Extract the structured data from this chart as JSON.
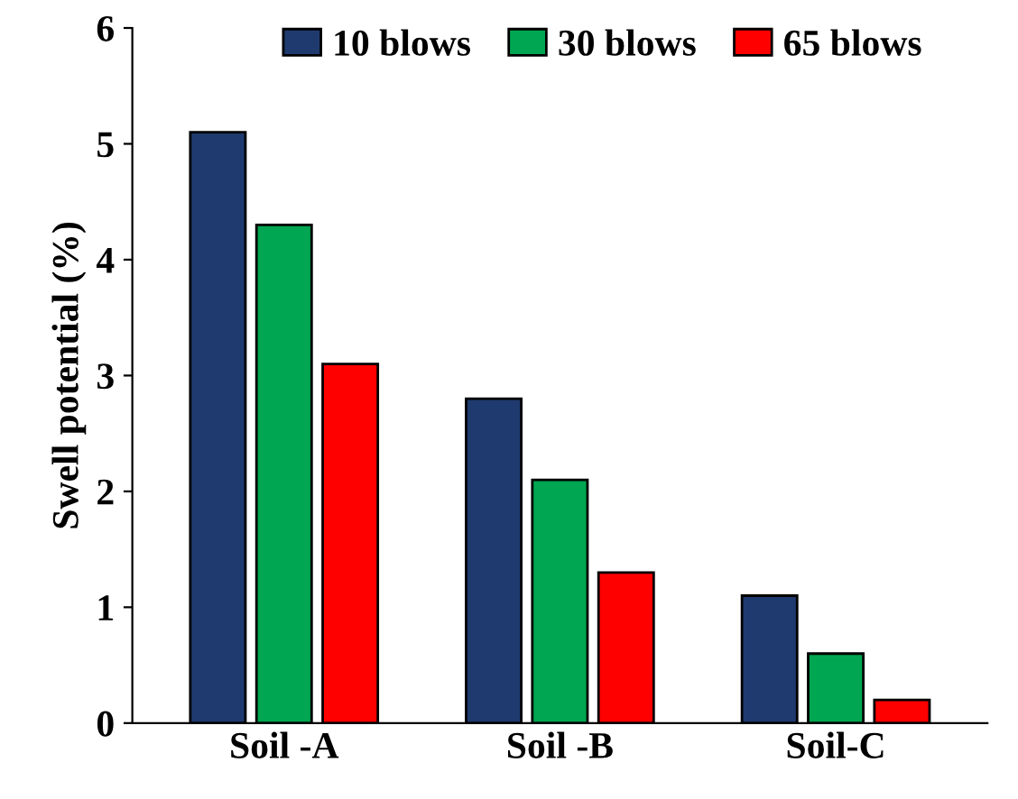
{
  "chart_data": {
    "type": "bar",
    "ylabel": "Swell potential (%)",
    "categories": [
      "Soil -A",
      "Soil -B",
      "Soil-C"
    ],
    "series": [
      {
        "name": "10 blows",
        "color": "#1f3a6e",
        "values": [
          5.1,
          2.8,
          1.1
        ]
      },
      {
        "name": "30 blows",
        "color": "#00a651",
        "values": [
          4.3,
          2.1,
          0.6
        ]
      },
      {
        "name": "65 blows",
        "color": "#ff0000",
        "values": [
          3.1,
          1.3,
          0.2
        ]
      }
    ],
    "ylim": [
      0,
      6
    ],
    "yticks": [
      0,
      1,
      2,
      3,
      4,
      5,
      6
    ],
    "grid": false,
    "legend": "top"
  }
}
